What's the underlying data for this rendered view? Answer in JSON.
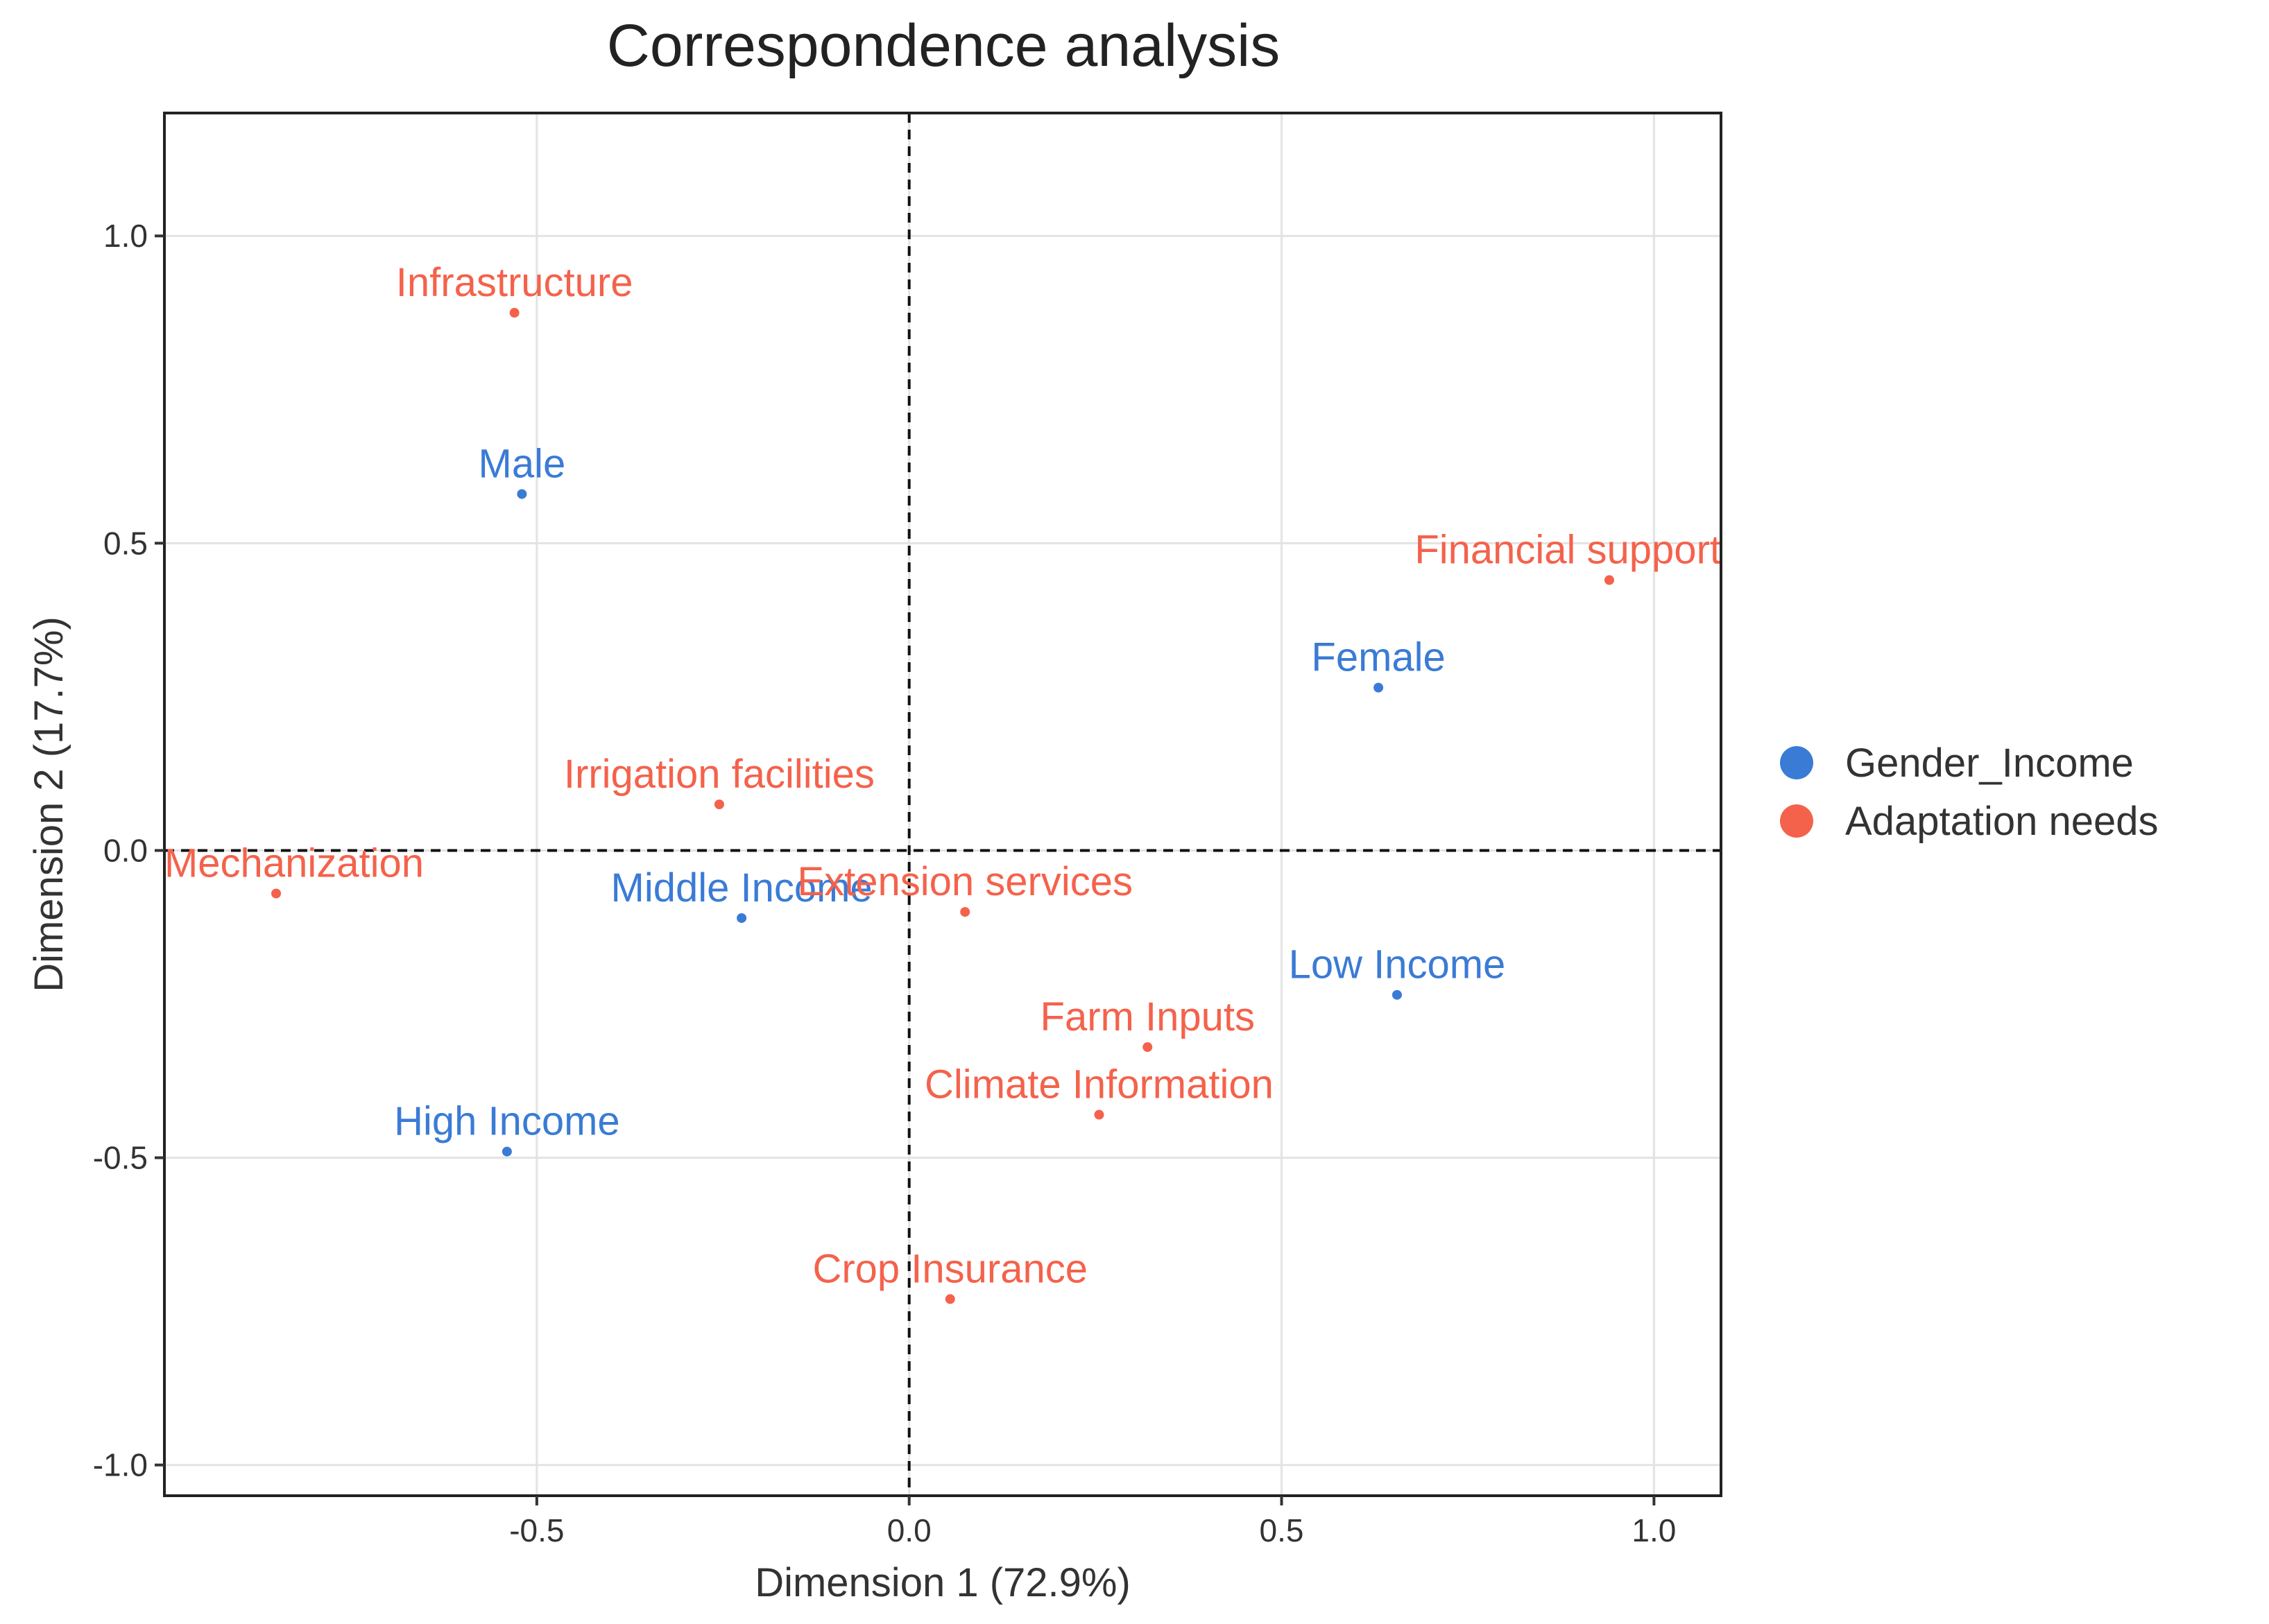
{
  "chart_data": {
    "type": "scatter",
    "title": "Correspondence analysis",
    "xlabel": "Dimension 1 (72.9%)",
    "ylabel": "Dimension 2 (17.7%)",
    "xlim": [
      -1.0,
      1.09
    ],
    "ylim": [
      -1.05,
      1.2
    ],
    "xticks": [
      -0.5,
      0.0,
      0.5,
      1.0
    ],
    "xtick_labels": [
      "-0.5",
      "0.0",
      "0.5",
      "1.0"
    ],
    "yticks": [
      -1.0,
      -0.5,
      0.0,
      0.5,
      1.0
    ],
    "ytick_labels": [
      "-1.0",
      "-0.5",
      "0.0",
      "0.5",
      "1.0"
    ],
    "grid": true,
    "reference_lines": {
      "x": 0,
      "y": 0,
      "style": "dashed"
    },
    "legend_position": "right",
    "series": [
      {
        "name": "Gender_Income",
        "color": "#3a7bd5",
        "points": [
          {
            "label": "Male",
            "x": -0.52,
            "y": 0.58
          },
          {
            "label": "Female",
            "x": 0.63,
            "y": 0.265
          },
          {
            "label": "Middle Income",
            "x": -0.225,
            "y": -0.11
          },
          {
            "label": "Low Income",
            "x": 0.655,
            "y": -0.235
          },
          {
            "label": "High Income",
            "x": -0.54,
            "y": -0.49
          }
        ]
      },
      {
        "name": "Adaptation needs",
        "color": "#f4624b",
        "points": [
          {
            "label": "Infrastructure",
            "x": -0.53,
            "y": 0.875
          },
          {
            "label": "Financial support",
            "x": 0.94,
            "y": 0.44
          },
          {
            "label": "Irrigation facilities",
            "x": -0.255,
            "y": 0.075
          },
          {
            "label": "Mechanization",
            "x": -0.85,
            "y": -0.07
          },
          {
            "label": "Extension services",
            "x": 0.075,
            "y": -0.1
          },
          {
            "label": "Farm Inputs",
            "x": 0.32,
            "y": -0.32
          },
          {
            "label": "Climate Information",
            "x": 0.255,
            "y": -0.43
          },
          {
            "label": "Crop Insurance",
            "x": 0.055,
            "y": -0.73
          }
        ]
      }
    ]
  }
}
